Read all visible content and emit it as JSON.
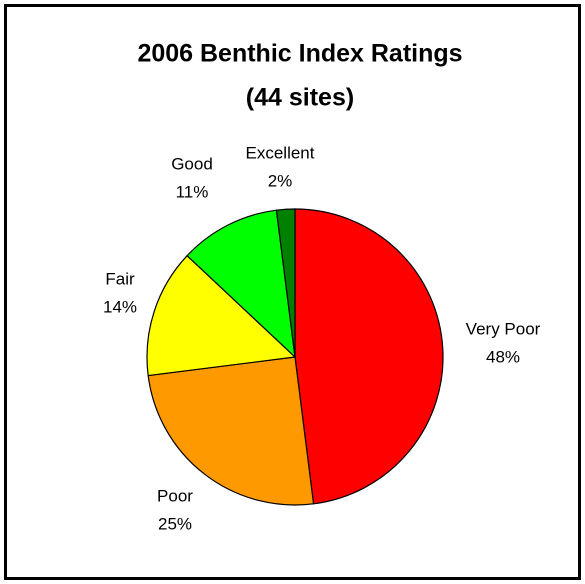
{
  "chart_data": {
    "type": "pie",
    "title": "2006 Benthic Index Ratings",
    "subtitle": "(44 sites)",
    "categories": [
      "Very Poor",
      "Poor",
      "Fair",
      "Good",
      "Excellent"
    ],
    "values": [
      48,
      25,
      14,
      11,
      2
    ],
    "value_labels": [
      "48%",
      "25%",
      "14%",
      "11%",
      "2%"
    ],
    "colors": [
      "#ff0000",
      "#ff9900",
      "#ffff00",
      "#00ff00",
      "#008000"
    ]
  }
}
